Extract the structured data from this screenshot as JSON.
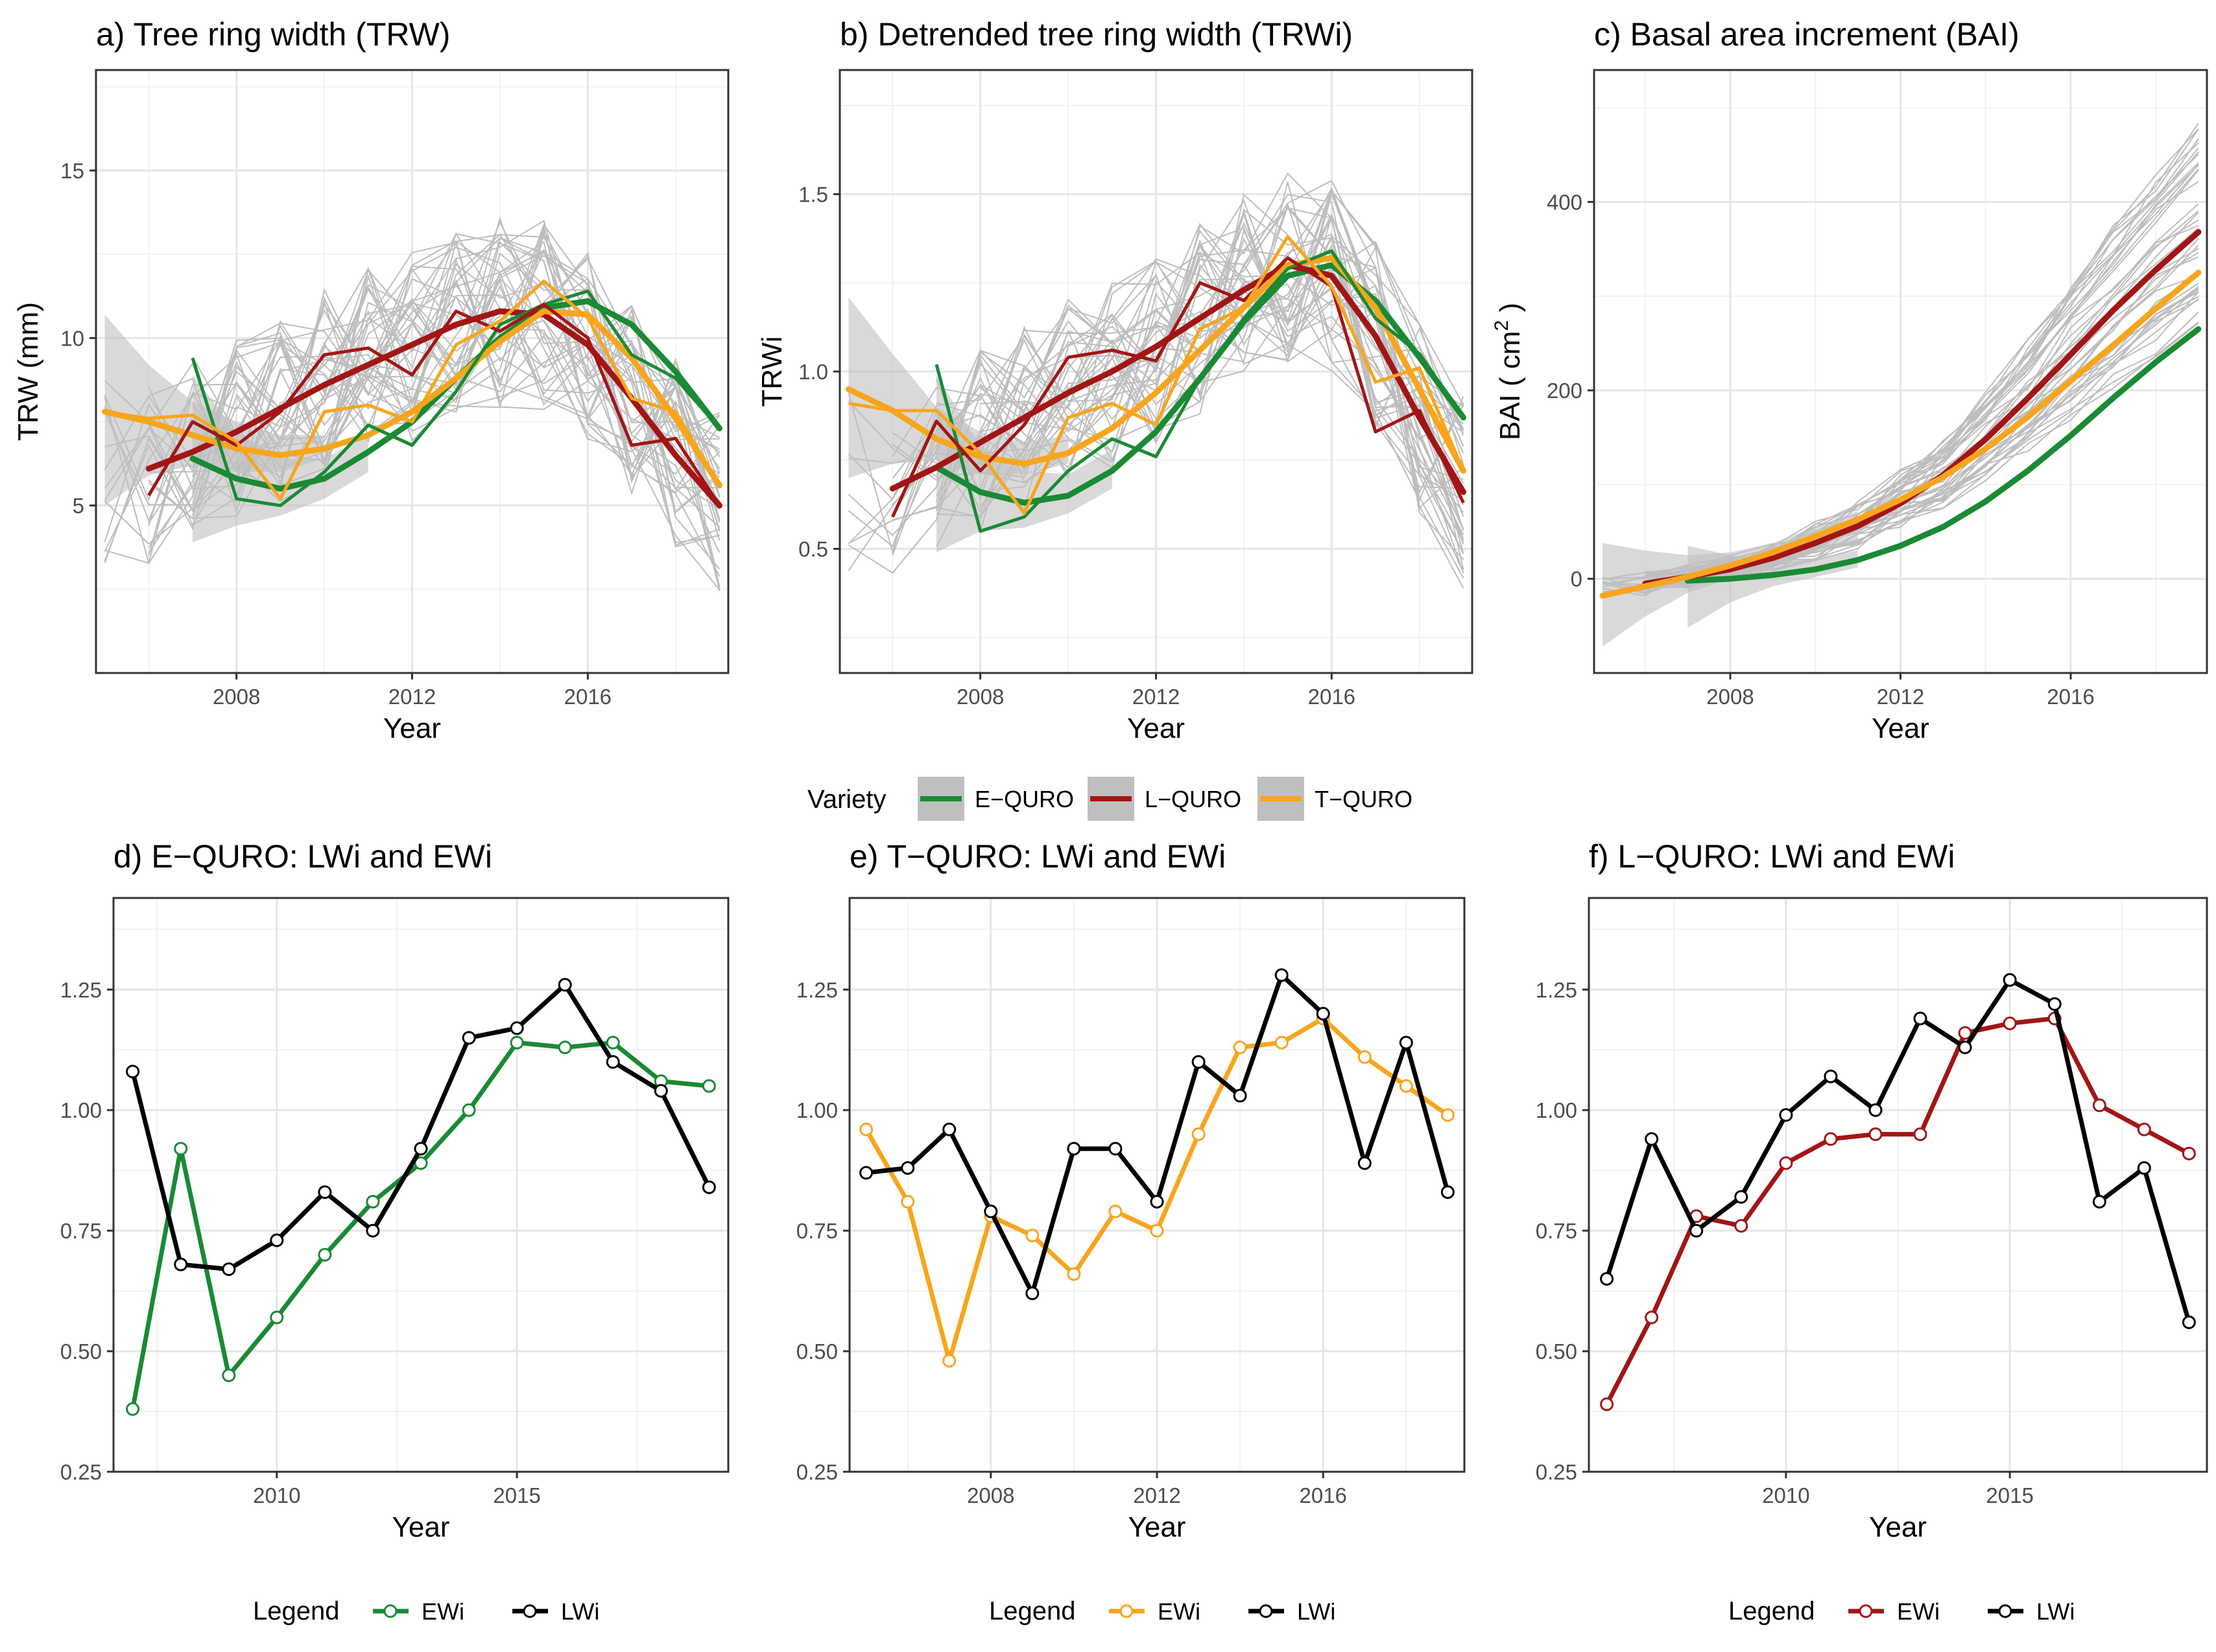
{
  "colors": {
    "E-QURO": "#1a8a34",
    "L-QURO": "#a31515",
    "T-QURO": "#f8a51c",
    "LWi": "#000000",
    "band": "#bfbfbf",
    "trees": "#bdbdbd",
    "grid_major": "#e6e6e6",
    "grid_minor": "#f2f2f2"
  },
  "legend_top": {
    "title": "Variety",
    "items": [
      {
        "label": "E−QURO",
        "key": "E-QURO"
      },
      {
        "label": "L−QURO",
        "key": "L-QURO"
      },
      {
        "label": "T−QURO",
        "key": "T-QURO"
      }
    ]
  },
  "chart_data": [
    {
      "id": "a",
      "type": "line",
      "title": "a) Tree ring width (TRW)",
      "xlabel": "Year",
      "ylabel": "TRW (mm)",
      "xlim": [
        2004.8,
        2019.2
      ],
      "ylim": [
        0,
        18
      ],
      "xticks": [
        2008,
        2012,
        2016
      ],
      "yticks": [
        5,
        10,
        15
      ],
      "tree_series_count": 40,
      "series": [
        {
          "name": "E-QURO",
          "x": [
            2007,
            2008,
            2009,
            2010,
            2011,
            2012,
            2013,
            2014,
            2015,
            2016,
            2017,
            2018,
            2019
          ],
          "values": [
            9.4,
            5.2,
            5.0,
            6.0,
            7.4,
            6.8,
            8.4,
            10.4,
            11.0,
            11.4,
            9.5,
            8.8,
            7.3
          ]
        },
        {
          "name": "L-QURO",
          "x": [
            2006,
            2007,
            2008,
            2009,
            2010,
            2011,
            2012,
            2013,
            2014,
            2015,
            2016,
            2017,
            2018,
            2019
          ],
          "values": [
            5.3,
            7.5,
            6.8,
            7.8,
            9.5,
            9.7,
            8.9,
            10.8,
            10.2,
            11.0,
            10.0,
            6.8,
            7.0,
            5.0
          ]
        },
        {
          "name": "T-QURO",
          "x": [
            2005,
            2006,
            2007,
            2008,
            2009,
            2010,
            2011,
            2012,
            2013,
            2014,
            2015,
            2016,
            2017,
            2018,
            2019
          ],
          "values": [
            7.8,
            7.6,
            7.7,
            6.9,
            5.2,
            7.8,
            8.0,
            7.5,
            9.8,
            10.5,
            11.7,
            10.6,
            8.2,
            7.8,
            5.6
          ]
        }
      ],
      "smooth": [
        {
          "name": "E-QURO",
          "x": [
            2007,
            2008,
            2009,
            2010,
            2011,
            2012,
            2013,
            2014,
            2015,
            2016,
            2017,
            2018,
            2019
          ],
          "values": [
            6.4,
            5.8,
            5.5,
            5.8,
            6.6,
            7.5,
            8.8,
            10.0,
            10.9,
            11.1,
            10.4,
            9.0,
            7.3
          ]
        },
        {
          "name": "L-QURO",
          "x": [
            2006,
            2007,
            2008,
            2009,
            2010,
            2011,
            2012,
            2013,
            2014,
            2015,
            2016,
            2017,
            2018,
            2019
          ],
          "values": [
            6.1,
            6.6,
            7.2,
            7.9,
            8.6,
            9.2,
            9.8,
            10.4,
            10.8,
            10.7,
            9.8,
            8.2,
            6.5,
            5.0
          ]
        },
        {
          "name": "T-QURO",
          "x": [
            2005,
            2006,
            2007,
            2008,
            2009,
            2010,
            2011,
            2012,
            2013,
            2014,
            2015,
            2016,
            2017,
            2018,
            2019
          ],
          "values": [
            7.8,
            7.5,
            7.1,
            6.7,
            6.5,
            6.7,
            7.1,
            7.8,
            8.8,
            9.9,
            10.8,
            10.7,
            9.4,
            7.6,
            5.6
          ]
        }
      ],
      "bands": [
        {
          "x": [
            2005,
            2006,
            2007,
            2008,
            2009,
            2010
          ],
          "lo": [
            5.0,
            5.9,
            6.2,
            6.0,
            6.0,
            6.4
          ],
          "hi": [
            10.7,
            9.2,
            8.1,
            7.5,
            7.1,
            7.1
          ]
        },
        {
          "x": [
            2007,
            2008,
            2009,
            2010,
            2011
          ],
          "lo": [
            3.9,
            4.4,
            4.7,
            5.2,
            6.0
          ],
          "hi": [
            8.9,
            7.2,
            6.4,
            6.4,
            7.1
          ]
        }
      ]
    },
    {
      "id": "b",
      "type": "line",
      "title": "b) Detrended tree ring width (TRWi)",
      "xlabel": "Year",
      "ylabel": "TRWi",
      "xlim": [
        2004.8,
        2019.2
      ],
      "ylim": [
        0.15,
        1.85
      ],
      "xticks": [
        2008,
        2012,
        2016
      ],
      "yticks": [
        0.5,
        1.0,
        1.5
      ],
      "ytick_labels": [
        "0.5",
        "1.0",
        "1.5"
      ],
      "tree_series_count": 40,
      "series": [
        {
          "name": "E-QURO",
          "x": [
            2007,
            2008,
            2009,
            2010,
            2011,
            2012,
            2013,
            2014,
            2015,
            2016,
            2017,
            2018,
            2019
          ],
          "values": [
            1.02,
            0.55,
            0.59,
            0.72,
            0.81,
            0.76,
            0.98,
            1.15,
            1.29,
            1.34,
            1.15,
            1.05,
            0.87
          ]
        },
        {
          "name": "L-QURO",
          "x": [
            2006,
            2007,
            2008,
            2009,
            2010,
            2011,
            2012,
            2013,
            2014,
            2015,
            2016,
            2017,
            2018,
            2019
          ],
          "values": [
            0.59,
            0.86,
            0.72,
            0.85,
            1.04,
            1.06,
            1.03,
            1.25,
            1.2,
            1.32,
            1.24,
            0.83,
            0.89,
            0.63
          ]
        },
        {
          "name": "T-QURO",
          "x": [
            2005,
            2006,
            2007,
            2008,
            2009,
            2010,
            2011,
            2012,
            2013,
            2014,
            2015,
            2016,
            2017,
            2018,
            2019
          ],
          "values": [
            0.91,
            0.89,
            0.89,
            0.77,
            0.6,
            0.87,
            0.91,
            0.85,
            1.12,
            1.18,
            1.38,
            1.24,
            0.97,
            1.01,
            0.72
          ]
        }
      ],
      "smooth": [
        {
          "name": "E-QURO",
          "x": [
            2007,
            2008,
            2009,
            2010,
            2011,
            2012,
            2013,
            2014,
            2015,
            2016,
            2017,
            2018,
            2019
          ],
          "values": [
            0.73,
            0.66,
            0.63,
            0.65,
            0.72,
            0.83,
            0.98,
            1.14,
            1.27,
            1.3,
            1.2,
            1.04,
            0.87
          ]
        },
        {
          "name": "L-QURO",
          "x": [
            2006,
            2007,
            2008,
            2009,
            2010,
            2011,
            2012,
            2013,
            2014,
            2015,
            2016,
            2017,
            2018,
            2019
          ],
          "values": [
            0.67,
            0.73,
            0.8,
            0.87,
            0.94,
            1.0,
            1.07,
            1.15,
            1.23,
            1.3,
            1.27,
            1.1,
            0.87,
            0.66
          ]
        },
        {
          "name": "T-QURO",
          "x": [
            2005,
            2006,
            2007,
            2008,
            2009,
            2010,
            2011,
            2012,
            2013,
            2014,
            2015,
            2016,
            2017,
            2018,
            2019
          ],
          "values": [
            0.95,
            0.89,
            0.81,
            0.76,
            0.74,
            0.77,
            0.84,
            0.94,
            1.06,
            1.18,
            1.3,
            1.32,
            1.18,
            0.95,
            0.72
          ]
        }
      ],
      "bands": [
        {
          "x": [
            2005,
            2006,
            2007,
            2008,
            2009,
            2010
          ],
          "lo": [
            0.7,
            0.74,
            0.75,
            0.71,
            0.71,
            0.74
          ],
          "hi": [
            1.21,
            1.05,
            0.9,
            0.83,
            0.8,
            0.82
          ]
        },
        {
          "x": [
            2007,
            2008,
            2009,
            2010,
            2011
          ],
          "lo": [
            0.49,
            0.55,
            0.56,
            0.6,
            0.67
          ],
          "hi": [
            0.99,
            0.79,
            0.72,
            0.71,
            0.78
          ]
        }
      ]
    },
    {
      "id": "c",
      "type": "line",
      "title": "c) Basal area increment (BAI)",
      "xlabel": "Year",
      "ylabel": "BAI ( cm",
      "ylabel_sup": "2",
      "ylabel_end": " )",
      "xlim": [
        2004.8,
        2019.2
      ],
      "ylim": [
        -100,
        540
      ],
      "xticks": [
        2008,
        2012,
        2016
      ],
      "yticks": [
        0,
        200,
        400
      ],
      "tree_series_count": 40,
      "smooth": [
        {
          "name": "E-QURO",
          "x": [
            2007,
            2008,
            2009,
            2010,
            2011,
            2012,
            2013,
            2014,
            2015,
            2016,
            2017,
            2018,
            2019
          ],
          "values": [
            -2,
            0,
            4,
            10,
            20,
            35,
            55,
            82,
            115,
            152,
            192,
            230,
            265
          ]
        },
        {
          "name": "L-QURO",
          "x": [
            2006,
            2007,
            2008,
            2009,
            2010,
            2011,
            2012,
            2013,
            2014,
            2015,
            2016,
            2017,
            2018,
            2019
          ],
          "values": [
            -5,
            2,
            10,
            22,
            38,
            56,
            80,
            110,
            148,
            192,
            238,
            285,
            328,
            368
          ]
        },
        {
          "name": "T-QURO",
          "x": [
            2005,
            2006,
            2007,
            2008,
            2009,
            2010,
            2011,
            2012,
            2013,
            2014,
            2015,
            2016,
            2017,
            2018,
            2019
          ],
          "values": [
            -18,
            -8,
            2,
            14,
            28,
            45,
            63,
            84,
            108,
            138,
            172,
            210,
            248,
            287,
            325
          ]
        }
      ],
      "bands": [
        {
          "x": [
            2005,
            2006,
            2007,
            2008,
            2009,
            2010,
            2011
          ],
          "lo": [
            -72,
            -40,
            -15,
            0,
            12,
            28,
            40
          ],
          "hi": [
            38,
            30,
            25,
            28,
            38,
            55,
            72
          ]
        },
        {
          "x": [
            2007,
            2008,
            2009,
            2010,
            2011
          ],
          "lo": [
            -52,
            -25,
            -8,
            2,
            12
          ],
          "hi": [
            35,
            25,
            20,
            22,
            30
          ]
        }
      ]
    },
    {
      "id": "d",
      "type": "line",
      "title": "d) E−QURO: LWi and EWi",
      "xlabel": "Year",
      "ylabel": "",
      "xlim": [
        2006.6,
        2019.4
      ],
      "ylim": [
        0.25,
        1.44
      ],
      "xticks": [
        2010,
        2015
      ],
      "yticks": [
        0.25,
        0.5,
        0.75,
        1.0,
        1.25
      ],
      "ytick_labels": [
        "0.25",
        "0.50",
        "0.75",
        "1.00",
        "1.25"
      ],
      "series": [
        {
          "name": "EWi",
          "key": "E-QURO",
          "x": [
            2007,
            2008,
            2009,
            2010,
            2011,
            2012,
            2013,
            2014,
            2015,
            2016,
            2017,
            2018,
            2019
          ],
          "values": [
            0.38,
            0.92,
            0.45,
            0.57,
            0.7,
            0.81,
            0.89,
            1.0,
            1.14,
            1.13,
            1.14,
            1.06,
            1.05
          ]
        },
        {
          "name": "LWi",
          "key": "LWi",
          "x": [
            2007,
            2008,
            2009,
            2010,
            2011,
            2012,
            2013,
            2014,
            2015,
            2016,
            2017,
            2018,
            2019
          ],
          "values": [
            1.08,
            0.68,
            0.67,
            0.73,
            0.83,
            0.75,
            0.92,
            1.15,
            1.17,
            1.26,
            1.1,
            1.04,
            0.84
          ]
        }
      ],
      "legend": {
        "title": "Legend",
        "items": [
          "EWi",
          "LWi"
        ]
      }
    },
    {
      "id": "e",
      "type": "line",
      "title": "e) T−QURO: LWi and EWi",
      "xlabel": "Year",
      "ylabel": "",
      "xlim": [
        2004.6,
        2019.4
      ],
      "ylim": [
        0.25,
        1.44
      ],
      "xticks": [
        2008,
        2012,
        2016
      ],
      "yticks": [
        0.25,
        0.5,
        0.75,
        1.0,
        1.25
      ],
      "ytick_labels": [
        "0.25",
        "0.50",
        "0.75",
        "1.00",
        "1.25"
      ],
      "series": [
        {
          "name": "EWi",
          "key": "T-QURO",
          "x": [
            2005,
            2006,
            2007,
            2008,
            2009,
            2010,
            2011,
            2012,
            2013,
            2014,
            2015,
            2016,
            2017,
            2018,
            2019
          ],
          "values": [
            0.96,
            0.81,
            0.48,
            0.78,
            0.74,
            0.66,
            0.79,
            0.75,
            0.95,
            1.13,
            1.14,
            1.19,
            1.11,
            1.05,
            0.99
          ]
        },
        {
          "name": "LWi",
          "key": "LWi",
          "x": [
            2005,
            2006,
            2007,
            2008,
            2009,
            2010,
            2011,
            2012,
            2013,
            2014,
            2015,
            2016,
            2017,
            2018,
            2019
          ],
          "values": [
            0.87,
            0.88,
            0.96,
            0.79,
            0.62,
            0.92,
            0.92,
            0.81,
            1.1,
            1.03,
            1.28,
            1.2,
            0.89,
            1.14,
            0.83
          ]
        }
      ],
      "legend": {
        "title": "Legend",
        "items": [
          "EWi",
          "LWi"
        ]
      }
    },
    {
      "id": "f",
      "type": "line",
      "title": "f) L−QURO: LWi and EWi",
      "xlabel": "Year",
      "ylabel": "",
      "xlim": [
        2005.6,
        2019.4
      ],
      "ylim": [
        0.25,
        1.44
      ],
      "xticks": [
        2010,
        2015
      ],
      "yticks": [
        0.25,
        0.5,
        0.75,
        1.0,
        1.25
      ],
      "ytick_labels": [
        "0.25",
        "0.50",
        "0.75",
        "1.00",
        "1.25"
      ],
      "series": [
        {
          "name": "EWi",
          "key": "L-QURO",
          "x": [
            2006,
            2007,
            2008,
            2009,
            2010,
            2011,
            2012,
            2013,
            2014,
            2015,
            2016,
            2017,
            2018,
            2019
          ],
          "values": [
            0.39,
            0.57,
            0.78,
            0.76,
            0.89,
            0.94,
            0.95,
            0.95,
            1.16,
            1.18,
            1.19,
            1.01,
            0.96,
            0.91
          ]
        },
        {
          "name": "LWi",
          "key": "LWi",
          "x": [
            2006,
            2007,
            2008,
            2009,
            2010,
            2011,
            2012,
            2013,
            2014,
            2015,
            2016,
            2017,
            2018,
            2019
          ],
          "values": [
            0.65,
            0.94,
            0.75,
            0.82,
            0.99,
            1.07,
            1.0,
            1.19,
            1.13,
            1.27,
            1.22,
            0.81,
            0.88,
            0.56
          ]
        }
      ],
      "legend": {
        "title": "Legend",
        "items": [
          "EWi",
          "LWi"
        ]
      }
    }
  ]
}
